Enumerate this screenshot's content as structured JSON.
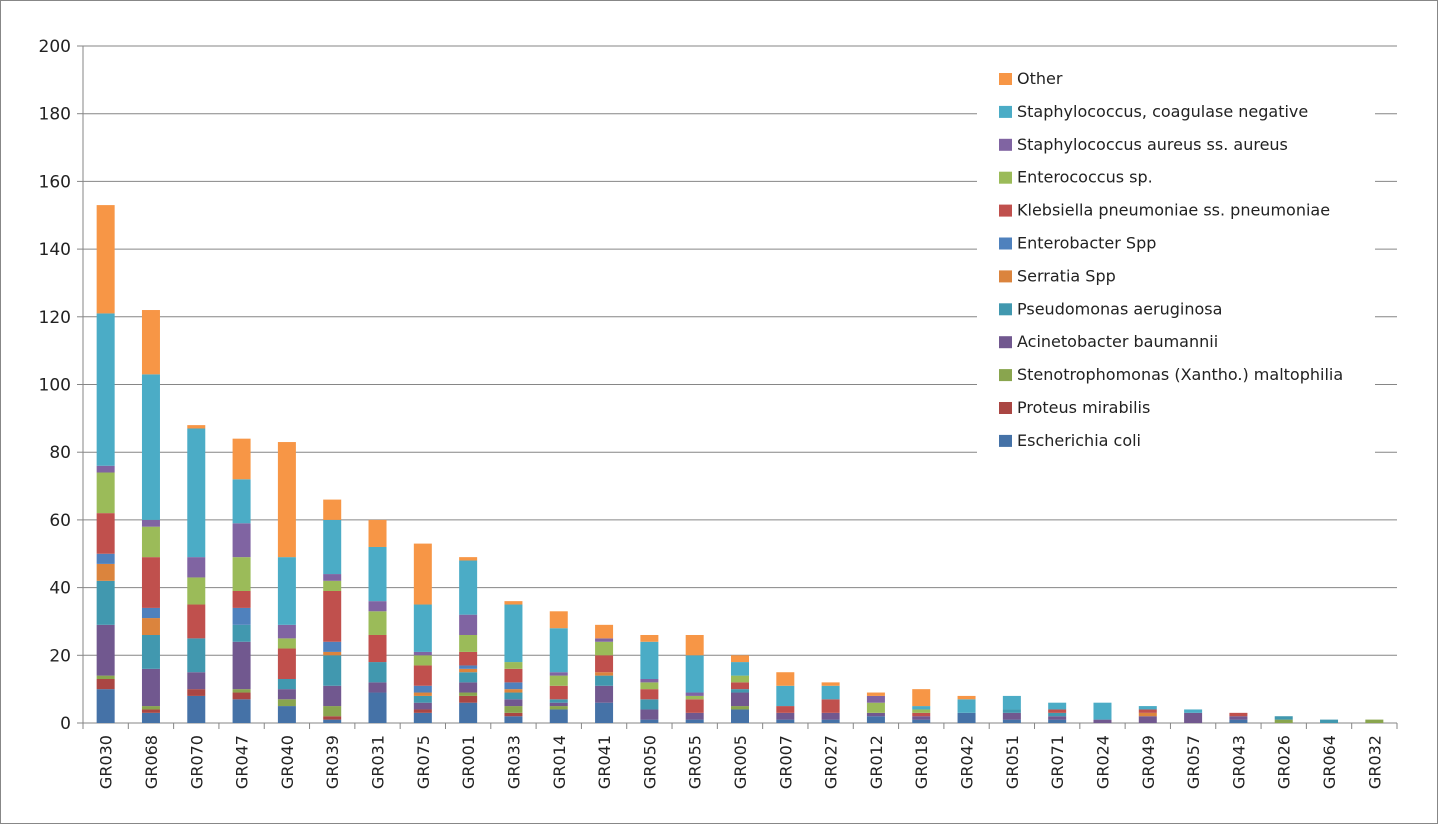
{
  "chart_data": {
    "type": "bar",
    "stacked": true,
    "title": "",
    "xlabel": "",
    "ylabel": "",
    "ylim": [
      0,
      200
    ],
    "yticks": [
      0,
      20,
      40,
      60,
      80,
      100,
      120,
      140,
      160,
      180,
      200
    ],
    "grid": true,
    "legend_position": "top-right",
    "categories": [
      "GR030",
      "GR068",
      "GR070",
      "GR047",
      "GR040",
      "GR039",
      "GR031",
      "GR075",
      "GR001",
      "GR033",
      "GR014",
      "GR041",
      "GR050",
      "GR055",
      "GR005",
      "GR007",
      "GR027",
      "GR012",
      "GR018",
      "GR042",
      "GR051",
      "GR071",
      "GR024",
      "GR049",
      "GR057",
      "GR043",
      "GR026",
      "GR064",
      "GR032"
    ],
    "series": [
      {
        "name": "Escherichia coli",
        "color": "#4572A7",
        "values": [
          10,
          3,
          8,
          7,
          5,
          1,
          9,
          3,
          6,
          2,
          4,
          6,
          1,
          1,
          4,
          1,
          1,
          2,
          1,
          3,
          1,
          1,
          0,
          0,
          0,
          1,
          0,
          0,
          0
        ]
      },
      {
        "name": "Proteus mirabilis",
        "color": "#AA4643",
        "values": [
          3,
          1,
          2,
          2,
          0,
          1,
          0,
          1,
          2,
          1,
          0,
          0,
          0,
          0,
          0,
          0,
          0,
          0,
          0,
          0,
          0,
          0,
          0,
          0,
          0,
          0,
          0,
          0,
          0
        ]
      },
      {
        "name": "Stenotrophomonas (Xantho.) maltophilia",
        "color": "#89A54E",
        "values": [
          1,
          1,
          0,
          1,
          2,
          3,
          0,
          0,
          1,
          2,
          1,
          0,
          0,
          0,
          1,
          0,
          0,
          0,
          0,
          0,
          0,
          0,
          0,
          0,
          0,
          0,
          1,
          0,
          1
        ]
      },
      {
        "name": "Acinetobacter baumannii",
        "color": "#71588F",
        "values": [
          15,
          11,
          5,
          14,
          3,
          6,
          3,
          2,
          3,
          2,
          1,
          5,
          3,
          2,
          4,
          2,
          2,
          1,
          1,
          0,
          2,
          1,
          1,
          2,
          3,
          1,
          0,
          0,
          0
        ]
      },
      {
        "name": "Pseudomonas aeruginosa",
        "color": "#4198AF",
        "values": [
          13,
          10,
          10,
          5,
          3,
          9,
          6,
          2,
          3,
          2,
          1,
          3,
          3,
          0,
          1,
          0,
          0,
          0,
          0,
          0,
          1,
          1,
          0,
          0,
          0,
          0,
          1,
          1,
          0
        ]
      },
      {
        "name": "Serratia Spp",
        "color": "#DB843D",
        "values": [
          5,
          5,
          0,
          0,
          0,
          1,
          0,
          1,
          1,
          1,
          0,
          1,
          0,
          0,
          0,
          0,
          0,
          0,
          0,
          0,
          0,
          0,
          0,
          1,
          0,
          0,
          0,
          0,
          0
        ]
      },
      {
        "name": "Enterobacter Spp",
        "color": "#4F81BD",
        "values": [
          3,
          3,
          0,
          5,
          0,
          3,
          0,
          2,
          1,
          2,
          0,
          0,
          0,
          0,
          0,
          0,
          0,
          0,
          0,
          0,
          0,
          0,
          0,
          0,
          0,
          0,
          0,
          0,
          0
        ]
      },
      {
        "name": "Klebsiella pneumoniae ss. pneumoniae",
        "color": "#C0504D",
        "values": [
          12,
          15,
          10,
          5,
          9,
          15,
          8,
          6,
          4,
          4,
          4,
          5,
          3,
          4,
          2,
          2,
          4,
          0,
          1,
          0,
          0,
          1,
          0,
          1,
          0,
          1,
          0,
          0,
          0
        ]
      },
      {
        "name": "Enterococcus sp.",
        "color": "#9BBB59",
        "values": [
          12,
          9,
          8,
          10,
          3,
          3,
          7,
          3,
          5,
          2,
          3,
          4,
          2,
          1,
          2,
          0,
          0,
          3,
          1,
          0,
          0,
          0,
          0,
          0,
          0,
          0,
          0,
          0,
          0
        ]
      },
      {
        "name": "Staphylococcus aureus ss. aureus",
        "color": "#8064A2",
        "values": [
          2,
          2,
          6,
          10,
          4,
          2,
          3,
          1,
          6,
          0,
          1,
          1,
          1,
          1,
          0,
          0,
          0,
          2,
          0,
          0,
          0,
          0,
          0,
          0,
          0,
          0,
          0,
          0,
          0
        ]
      },
      {
        "name": "Staphylococcus, coagulase negative",
        "color": "#4BACC6",
        "values": [
          45,
          43,
          38,
          13,
          20,
          16,
          16,
          14,
          16,
          17,
          13,
          0,
          11,
          11,
          4,
          6,
          4,
          0,
          1,
          4,
          4,
          2,
          5,
          1,
          1,
          0,
          0,
          0,
          0
        ]
      },
      {
        "name": "Other",
        "color": "#F79646",
        "values": [
          32,
          19,
          1,
          12,
          34,
          6,
          8,
          18,
          1,
          1,
          5,
          4,
          2,
          6,
          2,
          4,
          1,
          1,
          5,
          1,
          0,
          0,
          0,
          0,
          0,
          0,
          0,
          0,
          0
        ]
      }
    ],
    "legend_order": [
      "Other",
      "Staphylococcus, coagulase negative",
      "Staphylococcus aureus ss. aureus",
      "Enterococcus sp.",
      "Klebsiella pneumoniae ss. pneumoniae",
      "Enterobacter Spp",
      "Serratia Spp",
      "Pseudomonas aeruginosa",
      "Acinetobacter baumannii",
      "Stenotrophomonas (Xantho.) maltophilia",
      "Proteus mirabilis",
      "Escherichia coli"
    ]
  }
}
